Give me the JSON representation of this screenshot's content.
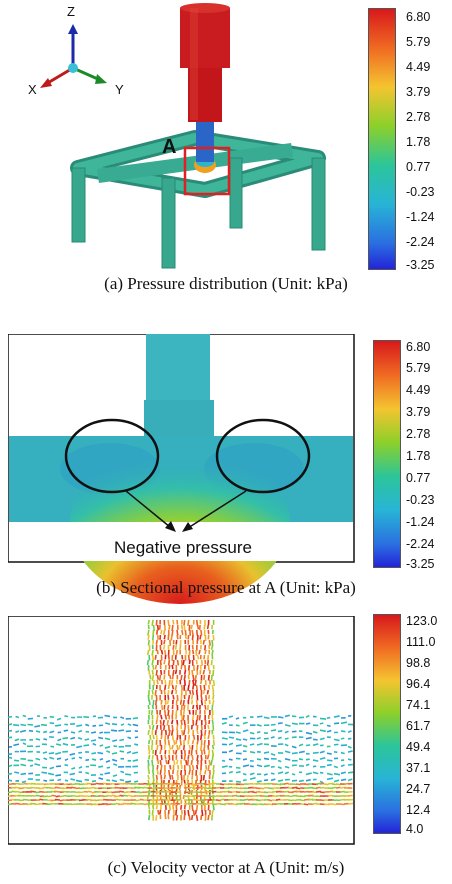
{
  "panel_a": {
    "label_A": "A",
    "axes": {
      "z": "Z",
      "x": "X",
      "y": "Y"
    },
    "colorbar": [
      "6.80",
      "5.79",
      "4.49",
      "3.79",
      "2.78",
      "1.78",
      "0.77",
      "-0.23",
      "-1.24",
      "-2.24",
      "-3.25"
    ],
    "caption": "(a) Pressure distribution (Unit: kPa)"
  },
  "panel_b": {
    "annotation": "Negative pressure",
    "colorbar": [
      "6.80",
      "5.79",
      "4.49",
      "3.79",
      "2.78",
      "1.78",
      "0.77",
      "-0.23",
      "-1.24",
      "-2.24",
      "-3.25"
    ],
    "caption": "(b) Sectional pressure at A (Unit: kPa)"
  },
  "panel_c": {
    "colorbar": [
      "123.0",
      "111.0",
      "98.8",
      "96.4",
      "74.1",
      "61.7",
      "49.4",
      "37.1",
      "24.7",
      "12.4",
      "4.0"
    ],
    "caption": "(c) Velocity vector at A (Unit: m/s)"
  },
  "colors": {
    "pipe": "#2f9f8a",
    "nozzle": "#c81e22",
    "highlight_box": "#e02020"
  }
}
